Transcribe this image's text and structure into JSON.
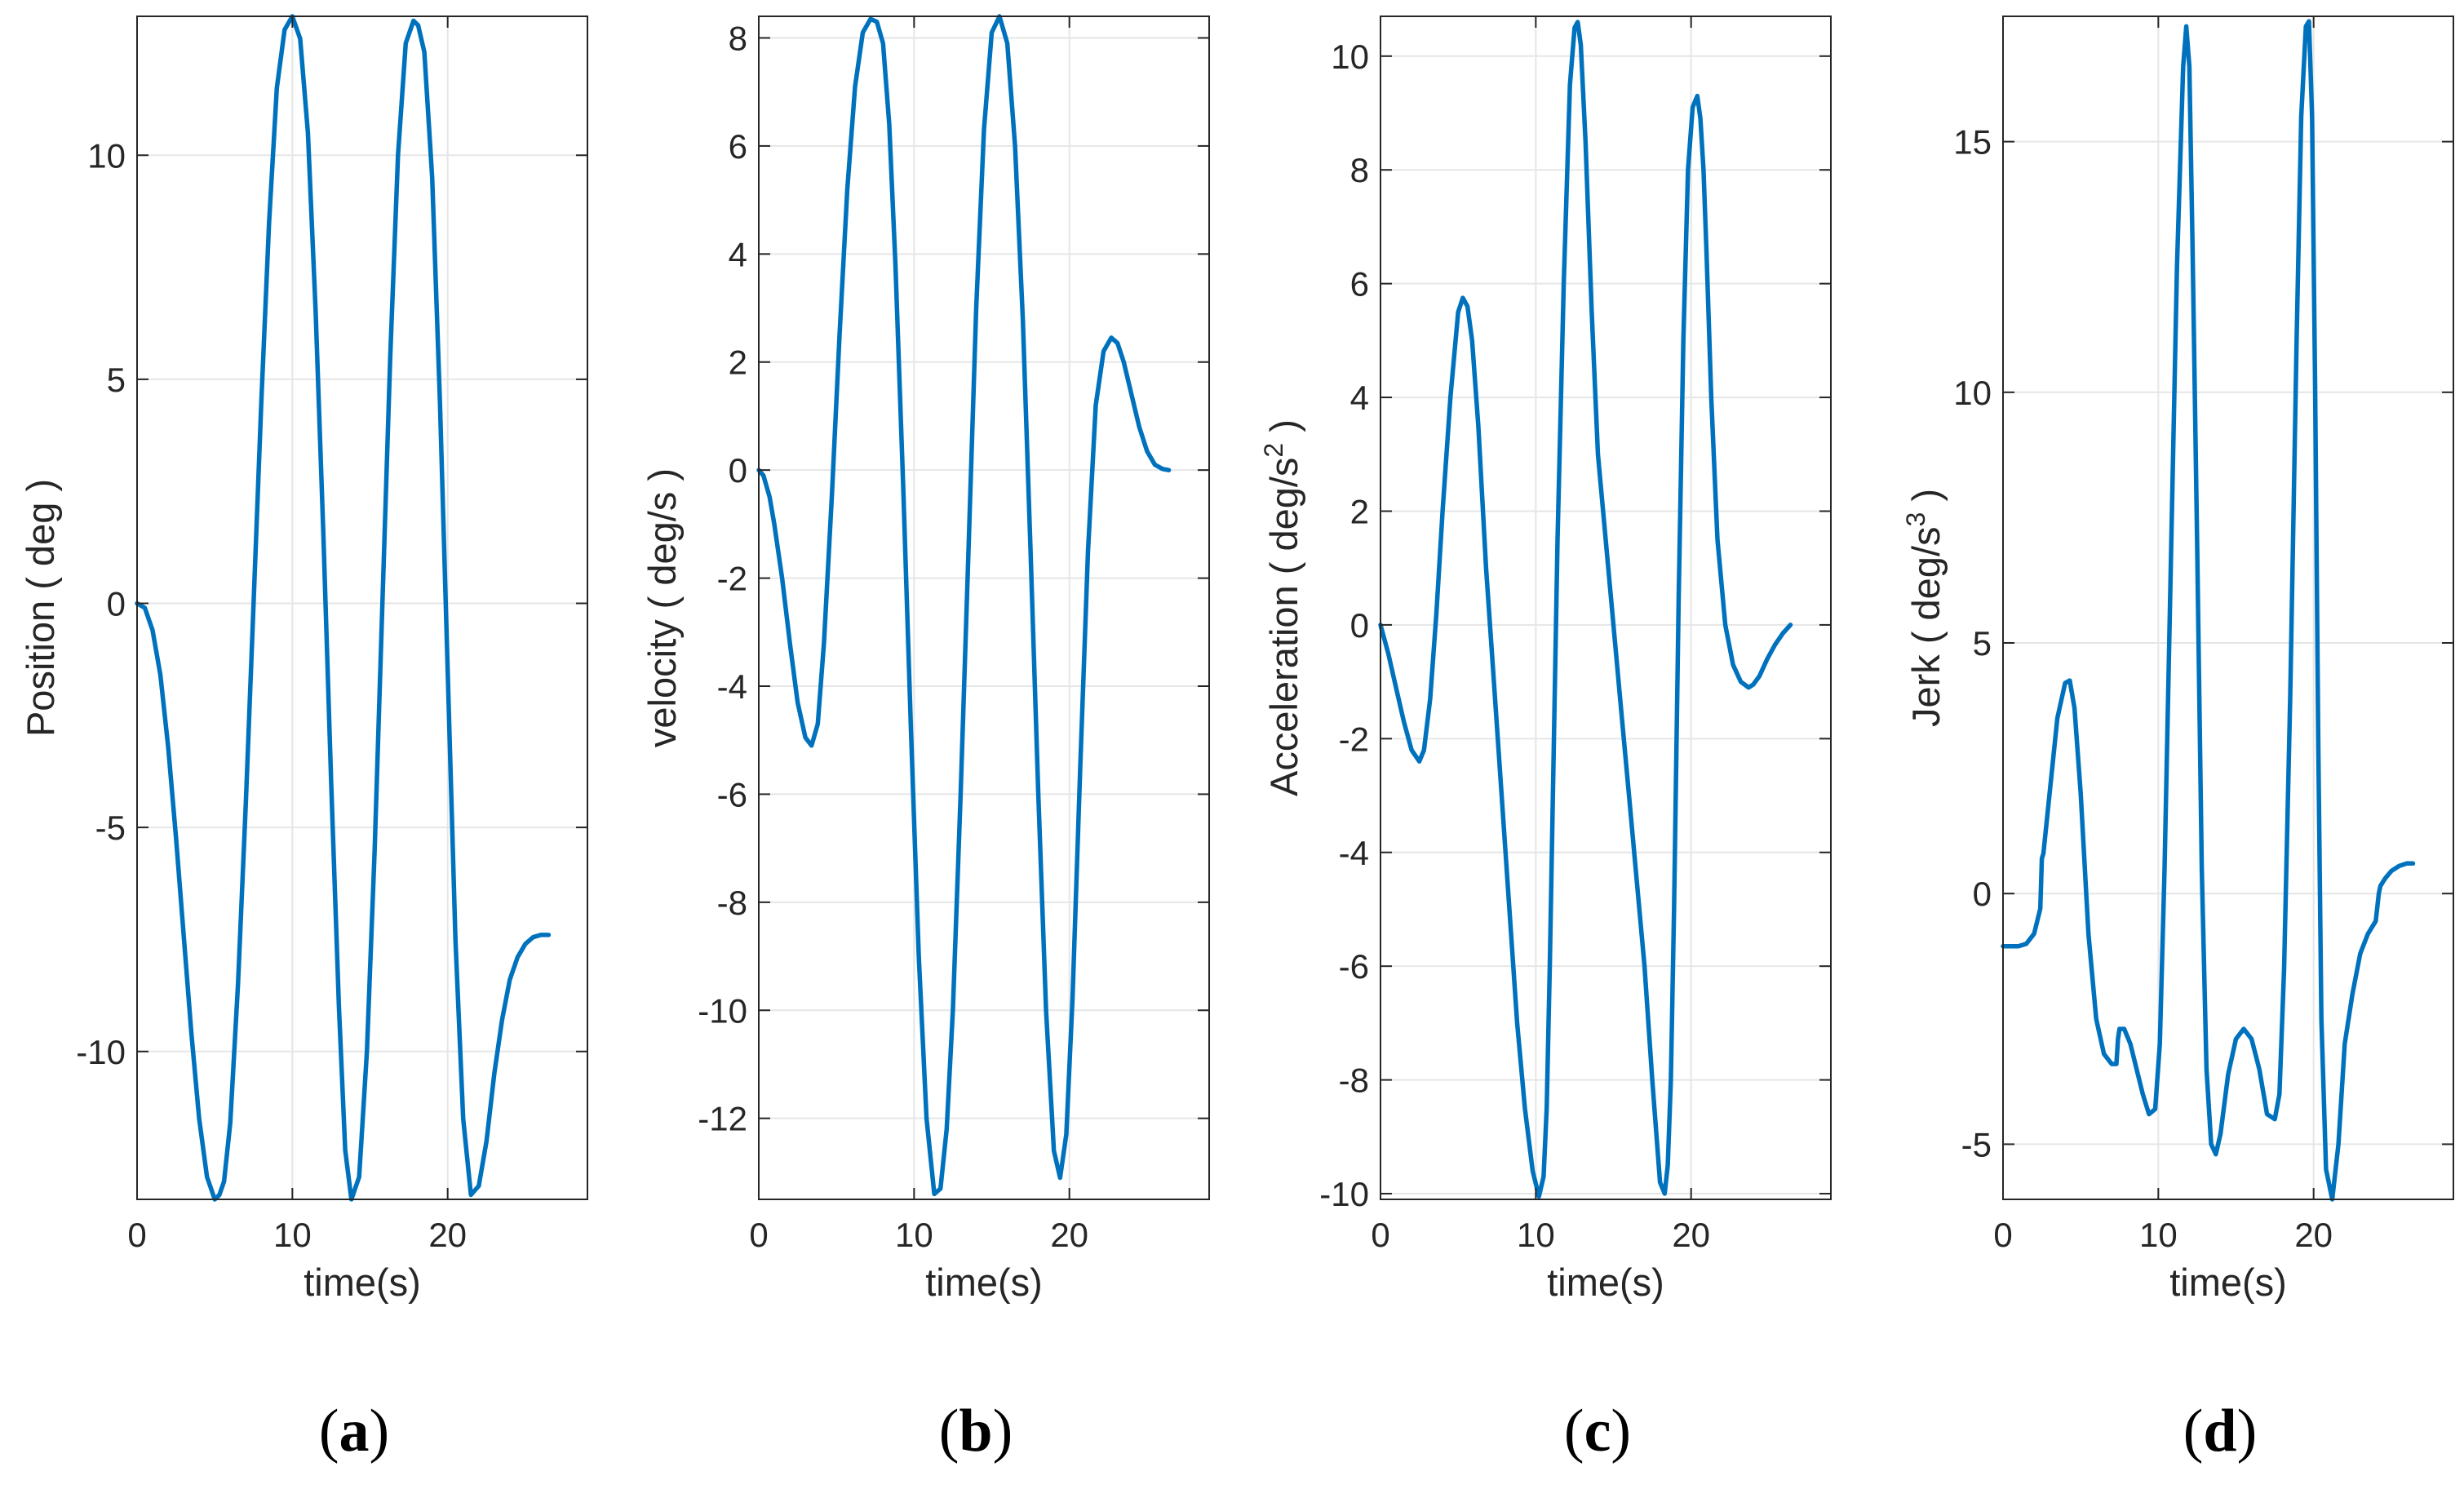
{
  "chart_data": [
    {
      "type": "line",
      "panel": "(a)",
      "panel_letter": "a",
      "xlabel": "time(s)",
      "ylabel": "Position ( deg )",
      "ylabel_sup": "",
      "ylabel_tail": "",
      "xlim": [
        0,
        29
      ],
      "ylim": [
        -13.3,
        13.1
      ],
      "xticks": [
        0,
        10,
        20
      ],
      "yticks": [
        -10,
        -5,
        0,
        5,
        10
      ],
      "grid": true,
      "color": "#0072BD",
      "series": [
        {
          "name": "position",
          "x": [
            0,
            0.5,
            1,
            1.5,
            2,
            2.5,
            3,
            3.5,
            4,
            4.5,
            5,
            5.3,
            5.6,
            6,
            6.5,
            7,
            7.5,
            8,
            8.5,
            9,
            9.5,
            10,
            10.5,
            11,
            11.5,
            12,
            12.5,
            13,
            13.4,
            13.8,
            14.3,
            14.8,
            15.3,
            15.8,
            16.3,
            16.8,
            17.3,
            17.8,
            18.1,
            18.5,
            19,
            19.5,
            20,
            20.5,
            21,
            21.5,
            22,
            22.5,
            23,
            23.5,
            24,
            24.5,
            25,
            25.5,
            26,
            26.5
          ],
          "y": [
            0,
            -0.1,
            -0.6,
            -1.6,
            -3.2,
            -5.2,
            -7.4,
            -9.6,
            -11.5,
            -12.8,
            -13.3,
            -13.2,
            -12.9,
            -11.6,
            -8.5,
            -4.5,
            0,
            4.5,
            8.5,
            11.5,
            12.8,
            13.1,
            12.6,
            10.5,
            6.5,
            1.5,
            -4,
            -9,
            -12.2,
            -13.3,
            -12.8,
            -10,
            -5.5,
            0,
            5.5,
            10,
            12.5,
            13,
            12.9,
            12.3,
            9.5,
            4.5,
            -1.5,
            -7.5,
            -11.5,
            -13.2,
            -13,
            -12,
            -10.5,
            -9.3,
            -8.4,
            -7.9,
            -7.6,
            -7.45,
            -7.4,
            -7.4
          ]
        }
      ]
    },
    {
      "type": "line",
      "panel": "(b)",
      "panel_letter": "b",
      "xlabel": "time(s)",
      "ylabel": "velocity ( deg/s",
      "ylabel_sup": "",
      "ylabel_tail": " )",
      "xlim": [
        0,
        29
      ],
      "ylim": [
        -13.5,
        8.4
      ],
      "xticks": [
        0,
        10,
        20
      ],
      "yticks": [
        -12,
        -10,
        -8,
        -6,
        -4,
        -2,
        0,
        2,
        4,
        6,
        8
      ],
      "grid": true,
      "color": "#0072BD",
      "series": [
        {
          "name": "velocity",
          "x": [
            0,
            0.3,
            0.7,
            1,
            1.5,
            2,
            2.5,
            3,
            3.4,
            3.8,
            4.2,
            4.7,
            5.2,
            5.7,
            6.2,
            6.7,
            7.2,
            7.6,
            8,
            8.4,
            8.8,
            9.3,
            9.8,
            10.3,
            10.8,
            11.3,
            11.7,
            12.1,
            12.5,
            13,
            13.5,
            14,
            14.5,
            15,
            15.5,
            16,
            16.5,
            17,
            17.5,
            18,
            18.5,
            19,
            19.4,
            19.8,
            20.2,
            20.7,
            21.2,
            21.7,
            22.2,
            22.7,
            23.1,
            23.5,
            24,
            24.5,
            25,
            25.5,
            26,
            26.4
          ],
          "y": [
            0,
            -0.1,
            -0.5,
            -1,
            -2,
            -3.2,
            -4.3,
            -4.95,
            -5.1,
            -4.7,
            -3.2,
            -0.5,
            2.5,
            5.2,
            7.1,
            8.1,
            8.35,
            8.3,
            7.9,
            6.4,
            3.8,
            -0.3,
            -4.8,
            -9,
            -12,
            -13.4,
            -13.3,
            -12.2,
            -10,
            -6,
            -1.5,
            3,
            6.3,
            8.1,
            8.4,
            7.9,
            6,
            2.8,
            -1.5,
            -6,
            -10,
            -12.6,
            -13.1,
            -12.3,
            -9.8,
            -5.5,
            -1.5,
            1.2,
            2.2,
            2.45,
            2.35,
            2,
            1.4,
            0.8,
            0.35,
            0.1,
            0.02,
            0
          ]
        }
      ]
    },
    {
      "type": "line",
      "panel": "(c)",
      "panel_letter": "c",
      "xlabel": "time(s)",
      "ylabel": "Acceleration ( deg/s",
      "ylabel_sup": "2",
      "ylabel_tail": " )",
      "xlim": [
        0,
        29
      ],
      "ylim": [
        -10.1,
        10.7
      ],
      "xticks": [
        0,
        10,
        20
      ],
      "yticks": [
        -10,
        -8,
        -6,
        -4,
        -2,
        0,
        2,
        4,
        6,
        8,
        10
      ],
      "grid": true,
      "color": "#0072BD",
      "series": [
        {
          "name": "acceleration",
          "x": [
            0,
            0.5,
            1,
            1.5,
            2,
            2.5,
            2.8,
            3.2,
            3.6,
            4,
            4.5,
            5,
            5.3,
            5.6,
            5.9,
            6.3,
            6.8,
            7.3,
            7.8,
            8.3,
            8.8,
            9.3,
            9.8,
            10.2,
            10.5,
            10.7,
            10.9,
            11.1,
            11.4,
            11.8,
            12.2,
            12.5,
            12.7,
            12.9,
            13.2,
            13.6,
            14,
            14.5,
            15,
            15.5,
            16,
            16.5,
            17,
            17.5,
            18,
            18.3,
            18.5,
            18.7,
            18.9,
            19.2,
            19.5,
            19.8,
            20.1,
            20.4,
            20.6,
            20.8,
            21,
            21.3,
            21.7,
            22.2,
            22.7,
            23.2,
            23.7,
            24,
            24.4,
            24.9,
            25.4,
            25.9,
            26.4
          ],
          "y": [
            0,
            -0.5,
            -1.1,
            -1.7,
            -2.2,
            -2.4,
            -2.2,
            -1.3,
            0.2,
            2,
            4,
            5.5,
            5.75,
            5.6,
            5,
            3.5,
            1,
            -1,
            -3,
            -5,
            -7,
            -8.5,
            -9.6,
            -10.05,
            -9.7,
            -8.5,
            -6,
            -3,
            1.5,
            6,
            9.5,
            10.5,
            10.6,
            10.2,
            8.5,
            5.5,
            3,
            1.5,
            0,
            -1.5,
            -3,
            -4.5,
            -6,
            -8,
            -9.8,
            -10,
            -9.5,
            -8,
            -5,
            0.5,
            5,
            8,
            9.1,
            9.3,
            8.9,
            8,
            6.5,
            4,
            1.5,
            0,
            -0.7,
            -1,
            -1.1,
            -1.05,
            -0.9,
            -0.6,
            -0.35,
            -0.15,
            0
          ]
        }
      ]
    },
    {
      "type": "line",
      "panel": "(d)",
      "panel_letter": "d",
      "xlabel": "time(s)",
      "ylabel": "Jerk ( deg/s",
      "ylabel_sup": "3",
      "ylabel_tail": " )",
      "xlim": [
        0,
        29
      ],
      "ylim": [
        -6.1,
        17.5
      ],
      "xticks": [
        0,
        10,
        20
      ],
      "yticks": [
        -5,
        0,
        5,
        10,
        15
      ],
      "grid": true,
      "color": "#0072BD",
      "series": [
        {
          "name": "jerk",
          "x": [
            0,
            0.5,
            1,
            1.5,
            2,
            2.4,
            2.5,
            2.6,
            3,
            3.5,
            4,
            4.3,
            4.6,
            5,
            5.5,
            6,
            6.5,
            7,
            7.3,
            7.4,
            7.5,
            7.8,
            8.2,
            8.6,
            9,
            9.4,
            9.8,
            10.1,
            10.4,
            10.8,
            11.2,
            11.6,
            11.8,
            12,
            12.2,
            12.5,
            12.8,
            13.1,
            13.4,
            13.7,
            14,
            14.5,
            15,
            15.5,
            16,
            16.5,
            17,
            17.5,
            17.8,
            18.1,
            18.5,
            18.9,
            19.2,
            19.5,
            19.7,
            19.9,
            20.1,
            20.3,
            20.5,
            20.8,
            21.2,
            21.6,
            22,
            22.5,
            23,
            23.5,
            24,
            24.2,
            24.3,
            24.6,
            25,
            25.5,
            26,
            26.4
          ],
          "y": [
            -1.05,
            -1.05,
            -1.05,
            -1,
            -0.8,
            -0.3,
            0.7,
            0.8,
            2,
            3.5,
            4.2,
            4.25,
            3.7,
            2,
            -0.8,
            -2.5,
            -3.2,
            -3.4,
            -3.4,
            -2.9,
            -2.7,
            -2.7,
            -3,
            -3.5,
            -4,
            -4.4,
            -4.3,
            -3,
            0.5,
            6.5,
            12.5,
            16.5,
            17.3,
            16.5,
            13,
            7,
            0.5,
            -3.5,
            -5,
            -5.2,
            -4.8,
            -3.6,
            -2.9,
            -2.7,
            -2.9,
            -3.5,
            -4.4,
            -4.5,
            -4,
            -1.5,
            4,
            11,
            15.5,
            17.3,
            17.4,
            15.5,
            10,
            3,
            -2.5,
            -5.5,
            -6.1,
            -5,
            -3,
            -2,
            -1.2,
            -0.8,
            -0.55,
            0,
            0.15,
            0.3,
            0.45,
            0.55,
            0.6,
            0.6
          ]
        }
      ]
    }
  ]
}
